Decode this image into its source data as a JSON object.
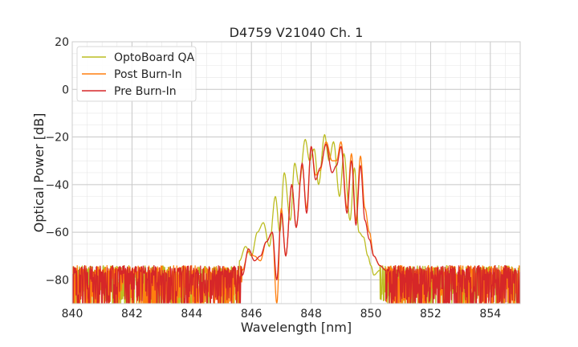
{
  "chart_data": {
    "type": "line",
    "title": "D4759 V21040 Ch. 1",
    "xlabel": "Wavelength [nm]",
    "ylabel": "Optical Power [dB]",
    "xlim": [
      840,
      855
    ],
    "ylim": [
      -90,
      20
    ],
    "xticks": [
      "840",
      "842",
      "844",
      "846",
      "848",
      "850",
      "852",
      "854"
    ],
    "yticks": [
      "20",
      "0",
      "−20",
      "−40",
      "−60",
      "−80"
    ],
    "grid": true,
    "legend": "top-left",
    "series": [
      {
        "name": "OptoBoard QA",
        "color": "#bcbd22",
        "noise_floor": -76,
        "noise_x": [
          840,
          845.6,
          850.3,
          855
        ],
        "x": [
          845.6,
          845.8,
          846.0,
          846.2,
          846.4,
          846.6,
          846.8,
          846.95,
          847.1,
          847.3,
          847.45,
          847.6,
          847.8,
          847.95,
          848.1,
          848.25,
          848.45,
          848.6,
          848.75,
          848.95,
          849.1,
          849.3,
          849.45,
          849.6,
          849.75,
          849.9,
          850.0,
          850.1,
          850.3
        ],
        "y": [
          -72,
          -66,
          -70,
          -60,
          -56,
          -66,
          -45,
          -60,
          -35,
          -55,
          -31,
          -40,
          -21,
          -30,
          -25,
          -40,
          -19,
          -30,
          -22,
          -45,
          -27,
          -55,
          -33,
          -60,
          -62,
          -70,
          -74,
          -78,
          -76
        ]
      },
      {
        "name": "Post Burn-In",
        "color": "#ff7f0e",
        "noise_floor": -76,
        "noise_x": [
          840,
          845.7,
          850.5,
          855
        ],
        "x": [
          845.7,
          845.9,
          846.1,
          846.3,
          846.5,
          846.7,
          846.85,
          847.0,
          847.15,
          847.35,
          847.5,
          847.7,
          847.85,
          848.0,
          848.15,
          848.3,
          848.5,
          848.7,
          848.85,
          849.0,
          849.2,
          849.35,
          849.5,
          849.65,
          849.8,
          849.95,
          850.1,
          850.3,
          850.5
        ],
        "y": [
          -76,
          -68,
          -70,
          -72,
          -64,
          -60,
          -90,
          -50,
          -70,
          -40,
          -58,
          -32,
          -50,
          -24,
          -36,
          -34,
          -22,
          -30,
          -30,
          -22,
          -50,
          -27,
          -55,
          -28,
          -50,
          -60,
          -70,
          -74,
          -76
        ]
      },
      {
        "name": "Pre Burn-In",
        "color": "#d62728",
        "noise_floor": -76,
        "noise_x": [
          840,
          845.7,
          850.5,
          855
        ],
        "x": [
          845.7,
          845.9,
          846.1,
          846.3,
          846.5,
          846.7,
          846.85,
          847.0,
          847.15,
          847.35,
          847.5,
          847.7,
          847.85,
          848.0,
          848.15,
          848.3,
          848.5,
          848.7,
          848.85,
          849.0,
          849.2,
          849.35,
          849.5,
          849.65,
          849.8,
          849.95,
          850.1,
          850.3,
          850.5
        ],
        "y": [
          -78,
          -67,
          -72,
          -70,
          -64,
          -60,
          -80,
          -52,
          -70,
          -40,
          -58,
          -31,
          -52,
          -24,
          -38,
          -33,
          -23,
          -35,
          -32,
          -24,
          -52,
          -30,
          -57,
          -32,
          -55,
          -63,
          -70,
          -74,
          -76
        ]
      }
    ]
  }
}
